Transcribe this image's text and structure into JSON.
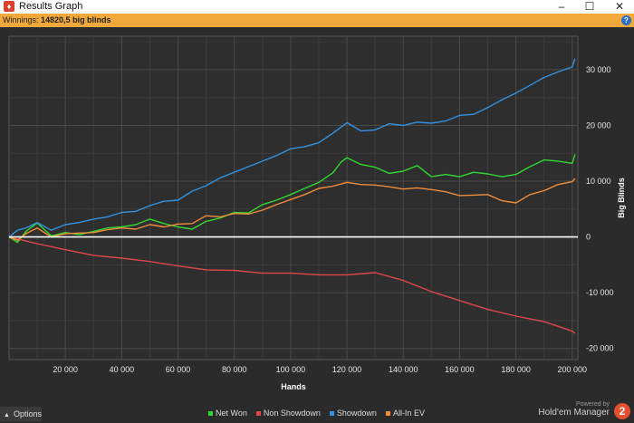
{
  "window": {
    "title": "Results Graph",
    "icon": "app-logo-icon",
    "controls": [
      "minimize",
      "maximize",
      "close"
    ]
  },
  "winnings_bar": {
    "label": "Winnings:",
    "value": "14820,5 big blinds",
    "background": "#f2a93b",
    "help_icon": "help-icon"
  },
  "chart_data": {
    "type": "line",
    "xlabel": "Hands",
    "ylabel": "Big Blinds",
    "xlim": [
      0,
      202000
    ],
    "ylim": [
      -22000,
      36000
    ],
    "x_ticks": [
      20000,
      40000,
      60000,
      80000,
      100000,
      120000,
      140000,
      160000,
      180000,
      200000
    ],
    "x_tick_labels": [
      "20 000",
      "40 000",
      "60 000",
      "80 000",
      "100 000",
      "120 000",
      "140 000",
      "160 000",
      "180 000",
      "200 000"
    ],
    "y_ticks": [
      -20000,
      -10000,
      0,
      10000,
      20000,
      30000
    ],
    "y_tick_labels": [
      "-20 000",
      "-10 000",
      "0",
      "10 000",
      "20 000",
      "30 000"
    ],
    "y_axis_position": "right",
    "grid": true,
    "legend_position": "bottom-center",
    "series": [
      {
        "name": "Net Won",
        "color": "#33d633",
        "x": [
          0,
          3000,
          6000,
          10000,
          15000,
          20000,
          25000,
          30000,
          35000,
          40000,
          45000,
          50000,
          55000,
          60000,
          65000,
          70000,
          75000,
          80000,
          85000,
          90000,
          95000,
          100000,
          105000,
          110000,
          115000,
          118000,
          120000,
          125000,
          130000,
          135000,
          140000,
          145000,
          150000,
          155000,
          160000,
          165000,
          170000,
          175000,
          180000,
          185000,
          190000,
          195000,
          200000,
          201000
        ],
        "y": [
          0,
          -1000,
          1000,
          2500,
          200,
          800,
          400,
          1000,
          1600,
          1800,
          2200,
          3200,
          2400,
          1800,
          1400,
          2800,
          3400,
          4400,
          4300,
          5800,
          6600,
          7600,
          8700,
          9800,
          11500,
          13500,
          14200,
          13000,
          12500,
          11400,
          11800,
          12800,
          10800,
          11200,
          10800,
          11600,
          11300,
          10800,
          11200,
          12600,
          13800,
          13600,
          13200,
          14800
        ]
      },
      {
        "name": "Non Showdown",
        "color": "#e04848",
        "x": [
          0,
          5000,
          10000,
          20000,
          30000,
          40000,
          50000,
          60000,
          70000,
          80000,
          90000,
          100000,
          110000,
          120000,
          130000,
          140000,
          150000,
          160000,
          170000,
          180000,
          190000,
          200000,
          201000
        ],
        "y": [
          0,
          -600,
          -1200,
          -2300,
          -3300,
          -3800,
          -4400,
          -5200,
          -5900,
          -6000,
          -6500,
          -6500,
          -6800,
          -6800,
          -6400,
          -7800,
          -9800,
          -11400,
          -13000,
          -14200,
          -15200,
          -16900,
          -17300
        ]
      },
      {
        "name": "Showdown",
        "color": "#3391e0",
        "x": [
          0,
          3000,
          6000,
          10000,
          15000,
          20000,
          25000,
          30000,
          35000,
          40000,
          45000,
          50000,
          55000,
          60000,
          65000,
          70000,
          75000,
          80000,
          85000,
          90000,
          95000,
          100000,
          105000,
          110000,
          115000,
          120000,
          125000,
          130000,
          135000,
          140000,
          145000,
          150000,
          155000,
          160000,
          165000,
          170000,
          175000,
          180000,
          185000,
          190000,
          195000,
          200000,
          201000
        ],
        "y": [
          0,
          1200,
          1600,
          2600,
          1200,
          2200,
          2600,
          3200,
          3600,
          4400,
          4600,
          5600,
          6400,
          6600,
          8200,
          9200,
          10600,
          11600,
          12600,
          13600,
          14600,
          15800,
          16200,
          16900,
          18600,
          20500,
          19000,
          19200,
          20300,
          20000,
          20600,
          20400,
          20800,
          21800,
          22000,
          23200,
          24600,
          25800,
          27200,
          28600,
          29600,
          30500,
          32000
        ]
      },
      {
        "name": "All-In EV",
        "color": "#f08c3a",
        "x": [
          0,
          3000,
          6000,
          10000,
          15000,
          20000,
          25000,
          30000,
          35000,
          40000,
          45000,
          50000,
          55000,
          60000,
          65000,
          70000,
          75000,
          80000,
          85000,
          90000,
          95000,
          100000,
          105000,
          110000,
          115000,
          120000,
          125000,
          130000,
          135000,
          140000,
          145000,
          150000,
          155000,
          160000,
          165000,
          170000,
          175000,
          180000,
          185000,
          190000,
          195000,
          200000,
          201000
        ],
        "y": [
          0,
          -600,
          600,
          1600,
          0,
          600,
          700,
          800,
          1300,
          1600,
          1400,
          2200,
          1800,
          2300,
          2400,
          3800,
          3600,
          4200,
          4100,
          4800,
          5800,
          6700,
          7600,
          8700,
          9100,
          9800,
          9400,
          9300,
          9000,
          8600,
          8800,
          8500,
          8100,
          7400,
          7500,
          7600,
          6500,
          6100,
          7600,
          8300,
          9400,
          9900,
          10500
        ]
      }
    ]
  },
  "legend": {
    "items": [
      {
        "label": "Net Won",
        "color": "#33d633"
      },
      {
        "label": "Non Showdown",
        "color": "#e04848"
      },
      {
        "label": "Showdown",
        "color": "#3391e0"
      },
      {
        "label": "All-In EV",
        "color": "#f08c3a"
      }
    ]
  },
  "footer": {
    "options_label": "Options",
    "powered_by": "Powered by",
    "brand": "Hold'em Manager",
    "brand_logo_text": "2"
  }
}
